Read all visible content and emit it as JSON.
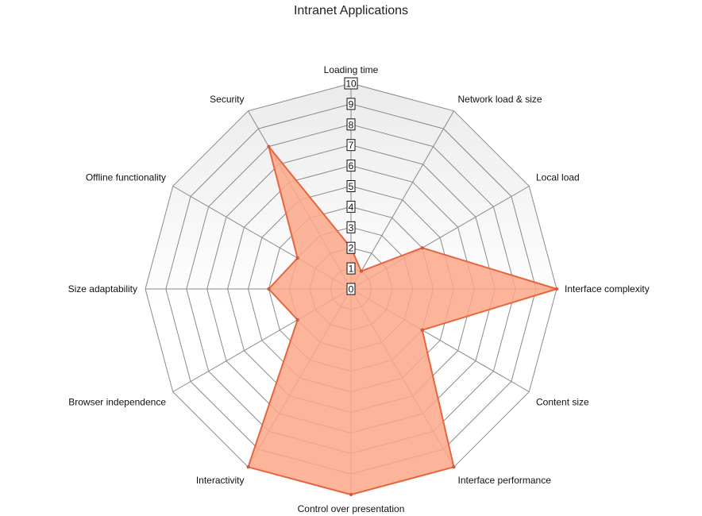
{
  "chart_data": {
    "type": "radar",
    "title": "Intranet Applications",
    "axes": [
      "Loading time",
      "Network load & size",
      "Local load",
      "Interface complexity",
      "Content size",
      "Interface performance",
      "Control over presentation",
      "Interactivity",
      "Browser independence",
      "Size adaptability",
      "Offline functionality",
      "Security"
    ],
    "scale": {
      "min": 0,
      "max": 10,
      "ticks": [
        0,
        1,
        2,
        3,
        4,
        5,
        6,
        7,
        8,
        9,
        10
      ]
    },
    "tick_labels": [
      "0",
      "1",
      "2",
      "3",
      "4",
      "5",
      "6",
      "7",
      "8",
      "9",
      "10"
    ],
    "series": [
      {
        "values": [
          2,
          1,
          4,
          10,
          4,
          10,
          10,
          10,
          3,
          4,
          3,
          8
        ],
        "color": "#fca88a",
        "line_color": "#e8643c"
      }
    ],
    "grid": true,
    "legend": "none",
    "background_gradient": [
      "#ebebeb",
      "#ffffff"
    ]
  }
}
